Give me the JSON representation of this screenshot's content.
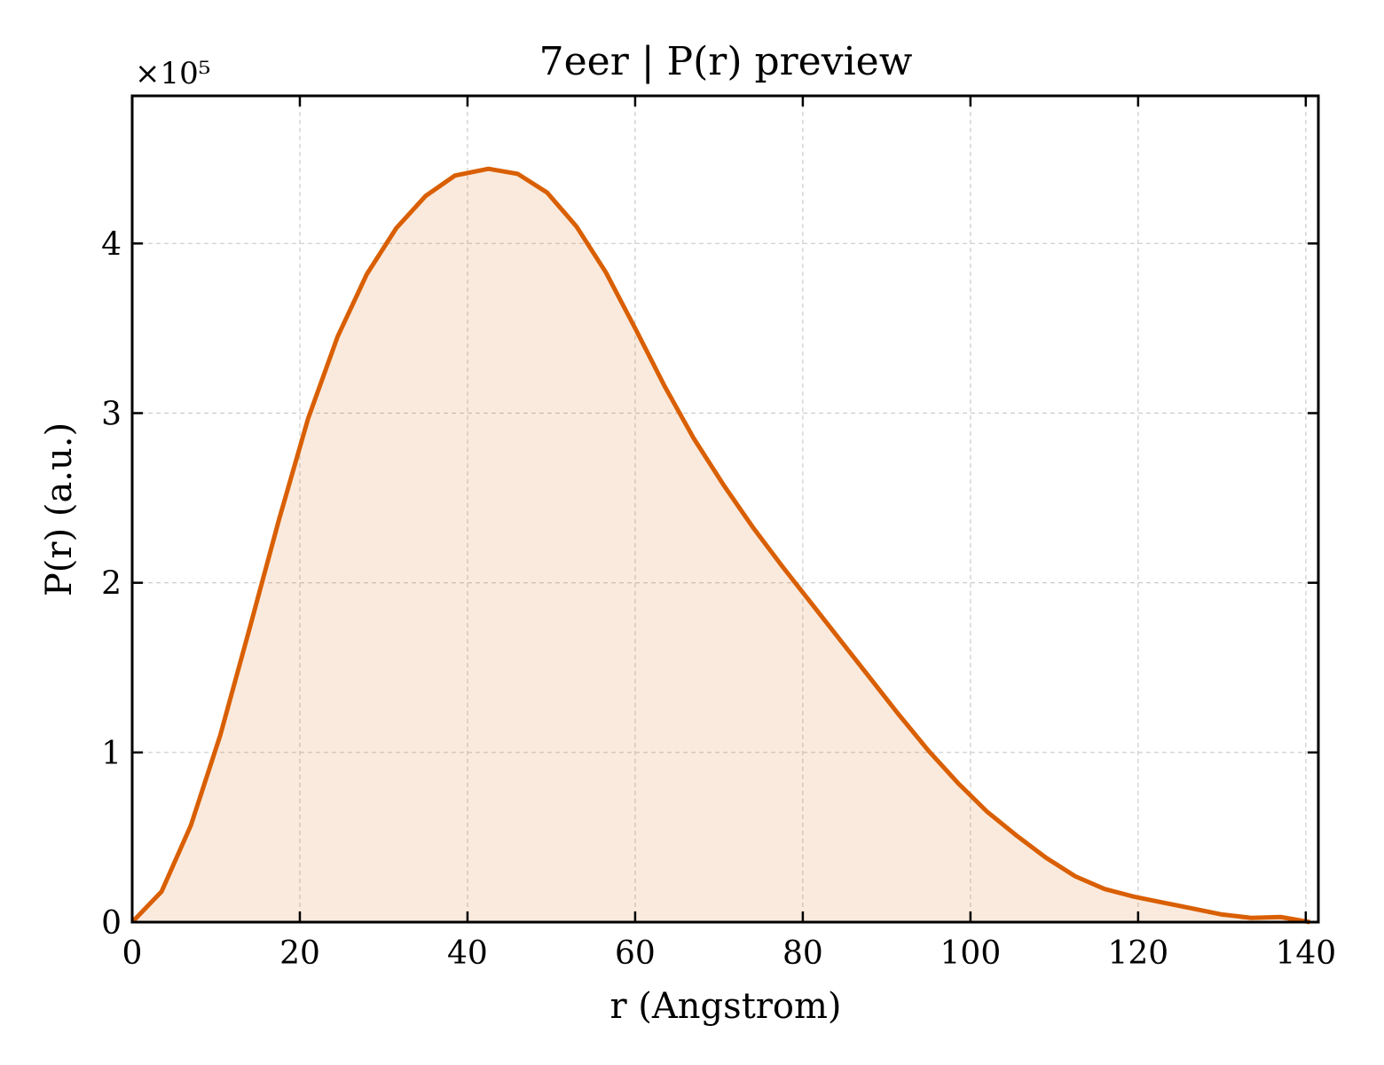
{
  "chart_data": {
    "type": "area",
    "title": "7eer | P(r) preview",
    "xlabel": "r (Angstrom)",
    "ylabel": "P(r) (a.u.)",
    "y_multiplier_label": "×10⁵",
    "y_scale": 100000,
    "xlim": [
      0,
      141.5
    ],
    "ylim": [
      0,
      487000
    ],
    "grid": true,
    "x_ticks": [
      0,
      20,
      40,
      60,
      80,
      100,
      120,
      140
    ],
    "x_tick_labels": [
      "0",
      "20",
      "40",
      "60",
      "80",
      "100",
      "120",
      "140"
    ],
    "y_ticks": [
      0,
      100000,
      200000,
      300000,
      400000
    ],
    "y_tick_labels": [
      "0",
      "1",
      "2",
      "3",
      "4"
    ],
    "series": [
      {
        "color": "#d95f02",
        "fill_color": "#d95f02",
        "fill_opacity": 0.13,
        "x": [
          0,
          3.5,
          7.0,
          10.5,
          14.0,
          17.5,
          21.0,
          24.5,
          28.0,
          31.5,
          35.0,
          38.5,
          42.5,
          46.0,
          49.5,
          53.0,
          56.5,
          60.0,
          63.5,
          67.0,
          70.5,
          74.0,
          77.5,
          81.0,
          84.5,
          88.0,
          91.5,
          95.0,
          98.5,
          102.0,
          105.5,
          109.0,
          112.5,
          116.0,
          119.5,
          123.0,
          126.5,
          130.0,
          133.5,
          137.0,
          140.5
        ],
        "y": [
          0,
          18000,
          57000,
          110000,
          173000,
          237000,
          297000,
          345000,
          382000,
          409000,
          428000,
          440000,
          444000,
          441000,
          430000,
          410000,
          383000,
          350000,
          316000,
          285000,
          258000,
          233000,
          210000,
          188000,
          166000,
          144000,
          122000,
          101000,
          82000,
          65000,
          51000,
          38000,
          27000,
          19500,
          15000,
          11500,
          8000,
          4500,
          2500,
          3000,
          0
        ]
      }
    ]
  }
}
